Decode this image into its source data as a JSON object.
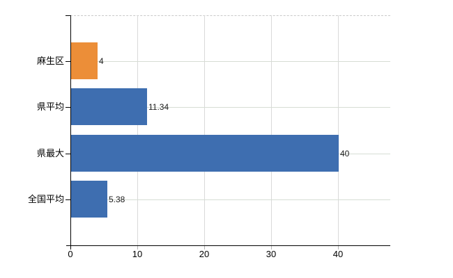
{
  "chart_data": {
    "type": "bar",
    "orientation": "horizontal",
    "title": "",
    "xlabel": "",
    "ylabel": "",
    "categories": [
      "麻生区",
      "県平均",
      "県最大",
      "全国平均"
    ],
    "values": [
      4,
      11.34,
      40,
      5.38
    ],
    "value_labels": [
      "4",
      "11.34",
      "40",
      "5.38"
    ],
    "bar_colors": [
      "#EC8E38",
      "#3E6EB0",
      "#3E6EB0",
      "#3E6EB0"
    ],
    "x_ticks": [
      0,
      10,
      20,
      30,
      40
    ],
    "x_tick_labels": [
      "0",
      "10",
      "20",
      "30",
      "40"
    ],
    "xlim": [
      0,
      47.8
    ],
    "grid": "on",
    "legend": "none"
  },
  "colors": {
    "background": "#ffffff",
    "bar_orange": "#EC8E38",
    "bar_blue": "#3E6EB0",
    "axis": "#000000",
    "vertical_gridline": "#d9d9d9",
    "horizontal_gridline": "#d6ddd4",
    "plot_top_border": "#c9c9c9"
  }
}
